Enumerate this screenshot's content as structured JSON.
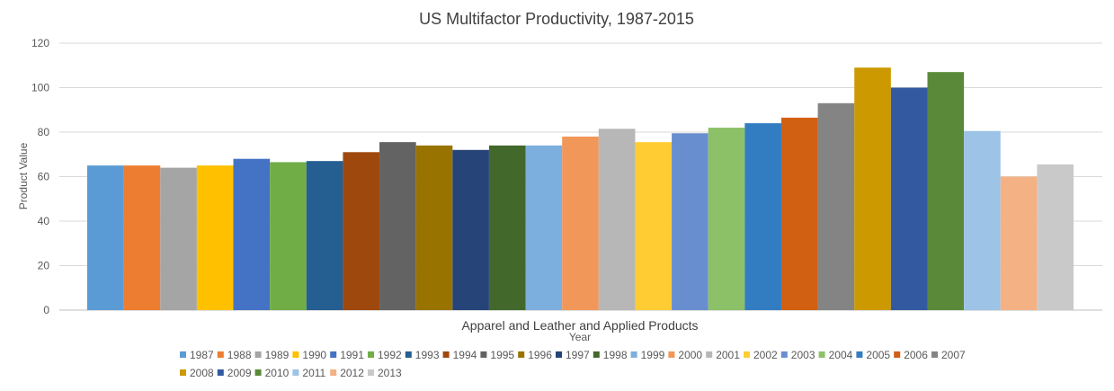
{
  "chart_data": {
    "type": "bar",
    "title": "US Multifactor Productivity, 1987-2015",
    "xlabel": "Year",
    "ylabel": "Product Value",
    "category_label": "Apparel and Leather and Applied Products",
    "ylim": [
      0,
      120
    ],
    "yticks": [
      0,
      20,
      40,
      60,
      80,
      100,
      120
    ],
    "grid": true,
    "legend_position": "bottom",
    "series": [
      {
        "name": "1987",
        "value": 65,
        "color": "#5B9BD5"
      },
      {
        "name": "1988",
        "value": 65,
        "color": "#ED7D31"
      },
      {
        "name": "1989",
        "value": 64,
        "color": "#A5A5A5"
      },
      {
        "name": "1990",
        "value": 65,
        "color": "#FFC000"
      },
      {
        "name": "1991",
        "value": 68,
        "color": "#4472C4"
      },
      {
        "name": "1992",
        "value": 66.5,
        "color": "#70AD47"
      },
      {
        "name": "1993",
        "value": 67,
        "color": "#255E91"
      },
      {
        "name": "1994",
        "value": 71,
        "color": "#9E480E"
      },
      {
        "name": "1995",
        "value": 75.5,
        "color": "#636363"
      },
      {
        "name": "1996",
        "value": 74,
        "color": "#997300"
      },
      {
        "name": "1997",
        "value": 72,
        "color": "#264478"
      },
      {
        "name": "1998",
        "value": 74,
        "color": "#43682B"
      },
      {
        "name": "1999",
        "value": 74,
        "color": "#7CAFDD"
      },
      {
        "name": "2000",
        "value": 78,
        "color": "#F1975A"
      },
      {
        "name": "2001",
        "value": 81.5,
        "color": "#B7B7B7"
      },
      {
        "name": "2002",
        "value": 75.5,
        "color": "#FFCD33"
      },
      {
        "name": "2003",
        "value": 79.5,
        "color": "#698ED0"
      },
      {
        "name": "2004",
        "value": 82,
        "color": "#8CC168"
      },
      {
        "name": "2005",
        "value": 84,
        "color": "#327DC2"
      },
      {
        "name": "2006",
        "value": 86.5,
        "color": "#D26012"
      },
      {
        "name": "2007",
        "value": 93,
        "color": "#848484"
      },
      {
        "name": "2008",
        "value": 109,
        "color": "#CC9A00"
      },
      {
        "name": "2009",
        "value": 100,
        "color": "#335AA1"
      },
      {
        "name": "2010",
        "value": 107,
        "color": "#5A8A39"
      },
      {
        "name": "2011",
        "value": 80.5,
        "color": "#9DC3E6"
      },
      {
        "name": "2012",
        "value": 60,
        "color": "#F4B183"
      },
      {
        "name": "2013",
        "value": 65.5,
        "color": "#C9C9C9"
      }
    ]
  }
}
